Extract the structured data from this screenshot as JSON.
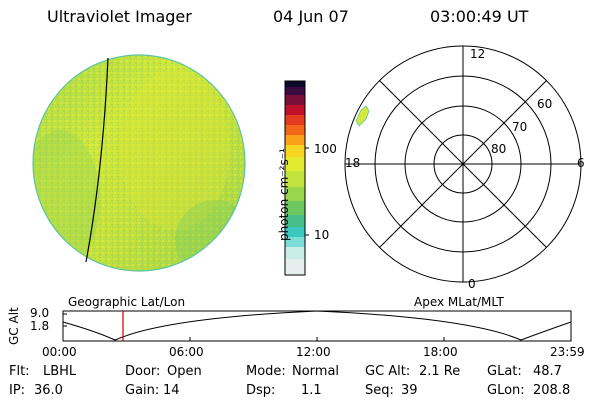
{
  "header": {
    "title": "Ultraviolet Imager",
    "date": "04 Jun 07",
    "time": "03:00:49  UT"
  },
  "colorbar": {
    "unit_label": "photon cm⁻²s⁻¹",
    "ticks": [
      "100",
      "10"
    ]
  },
  "polar_plot": {
    "mlt_labels": [
      "12",
      "18",
      "6",
      "0"
    ],
    "lat_labels": [
      "60",
      "70",
      "80"
    ]
  },
  "orbit_plot": {
    "left_title": "Geographic Lat/Lon",
    "right_title": "Apex  MLat/MLT",
    "ylabel": "GC Alt",
    "y_ticks": [
      "9.0",
      "1.8"
    ],
    "x_ticks": [
      "00:00",
      "06:00",
      "12:00",
      "18:00",
      "23:59"
    ],
    "current_time_marker": "03:00"
  },
  "status": {
    "row1": [
      {
        "label": "Flt:",
        "value": "LBHL"
      },
      {
        "label": "Door:",
        "value": "Open"
      },
      {
        "label": "Mode:",
        "value": "Normal"
      },
      {
        "label": "GC Alt:",
        "value": "2.1 Re"
      },
      {
        "label": "GLat:",
        "value": "48.7"
      }
    ],
    "row2": [
      {
        "label": "IP:",
        "value": "36.0"
      },
      {
        "label": "Gain:",
        "value": "14"
      },
      {
        "label": "Dsp:",
        "value": "1.1"
      },
      {
        "label": "Seq:",
        "value": "39"
      },
      {
        "label": "GLon:",
        "value": "208.8"
      }
    ]
  },
  "colors": {
    "disk_base": "#c6e53a",
    "marker": "#cc0000"
  }
}
